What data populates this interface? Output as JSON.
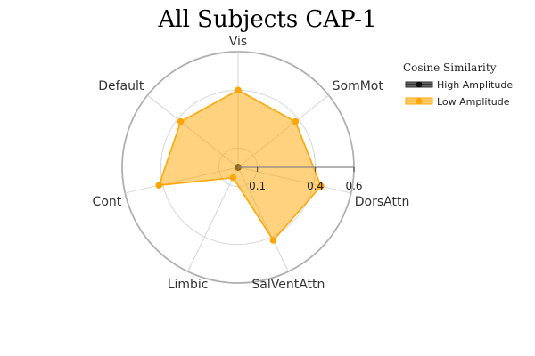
{
  "chart_data": {
    "type": "radar",
    "title": "All Subjects CAP-1",
    "axes": [
      "Vis",
      "SomMot",
      "DorsAttn",
      "SalVentAttn",
      "Limbic",
      "Cont",
      "Default"
    ],
    "radial_range": [
      0,
      0.6
    ],
    "radial_ticks": [
      0.1,
      0.4,
      0.6
    ],
    "tick_labels": [
      "0.1",
      "0.4",
      "0.6"
    ],
    "grid": true,
    "legend": {
      "title": "Cosine Similarity",
      "position": "top-right",
      "entries": [
        "High Amplitude",
        "Low Amplitude"
      ]
    },
    "series": [
      {
        "name": "High Amplitude",
        "color": "#333333",
        "values": [
          0,
          0,
          0,
          0,
          0,
          0,
          0
        ]
      },
      {
        "name": "Low Amplitude",
        "color": "#FFA500",
        "values": [
          0.4,
          0.38,
          0.44,
          0.42,
          0.06,
          0.42,
          0.38
        ]
      }
    ]
  }
}
